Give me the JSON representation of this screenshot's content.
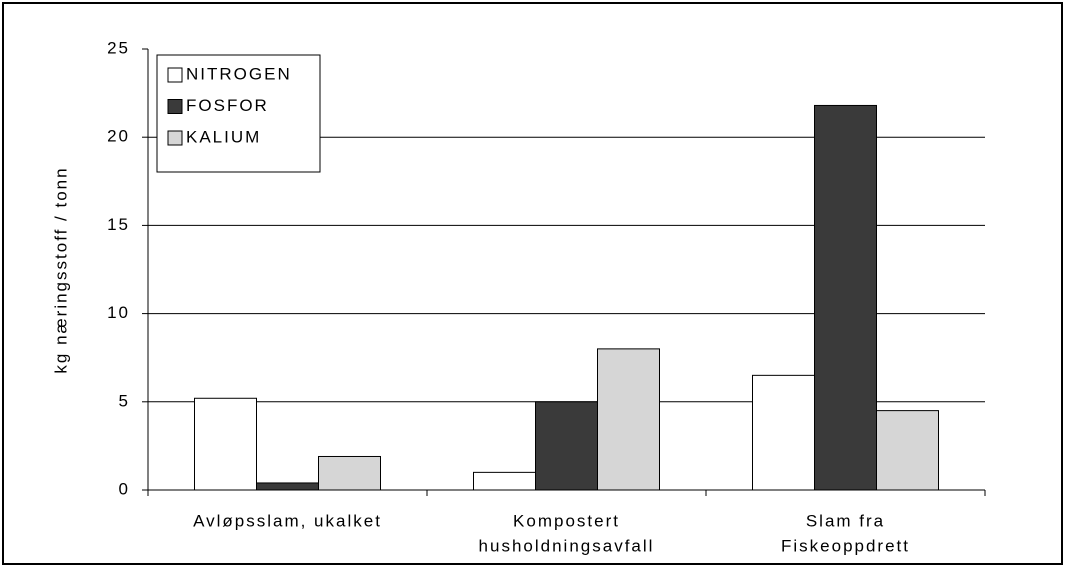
{
  "chart_data": {
    "type": "bar",
    "y_label": "kg næringsstoff / tonn",
    "categories": [
      [
        "Avløpsslam, ukalket"
      ],
      [
        "Kompostert",
        "husholdningsavfall"
      ],
      [
        "Slam fra",
        "Fiskeoppdrett"
      ]
    ],
    "series": [
      {
        "name": "NITROGEN",
        "color": "#ffffff",
        "values": [
          5.2,
          1.0,
          6.5
        ]
      },
      {
        "name": "FOSFOR",
        "color": "#3a3a3a",
        "values": [
          0.4,
          5.0,
          21.8
        ]
      },
      {
        "name": "KALIUM",
        "color": "#d6d6d6",
        "values": [
          1.9,
          8.0,
          4.5
        ]
      }
    ],
    "ylim": [
      0,
      25
    ],
    "yticks": [
      0,
      5,
      10,
      15,
      20,
      25
    ],
    "grid": true,
    "legend": "top-left"
  }
}
